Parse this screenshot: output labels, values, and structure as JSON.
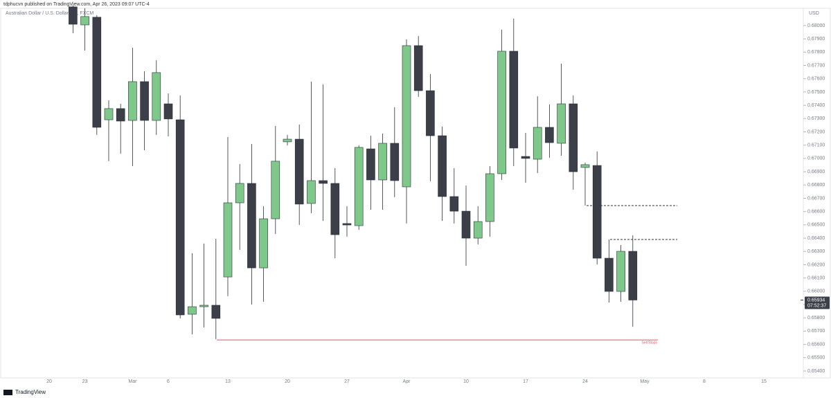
{
  "header": "tdphucvn published on TradingView.com, Apr 26, 2023 09:07 UTC-4",
  "footer": "TradingView",
  "chart_data": {
    "type": "candlestick",
    "title": "Australian Dollar / U.S. Dollar, 1D, FXCM",
    "y_axis_label": "USD",
    "up_color": "#7ec98a",
    "down_color": "#3c3f47",
    "categories": [
      "20",
      null,
      null,
      "23",
      null,
      null,
      null,
      "Mar",
      null,
      null,
      "6",
      null,
      null,
      null,
      null,
      "13",
      null,
      null,
      null,
      null,
      "20",
      null,
      null,
      null,
      null,
      "27",
      null,
      null,
      null,
      null,
      "Apr",
      null,
      null,
      null,
      null,
      "10",
      null,
      null,
      null,
      null,
      "17",
      null,
      null,
      null,
      null,
      "24",
      null,
      null,
      null,
      null,
      "May",
      null,
      null,
      null,
      null,
      "8",
      null,
      null,
      null,
      null,
      "15",
      null,
      null,
      null
    ],
    "open": [
      null,
      null,
      0.68141,
      0.68005,
      0.68063,
      0.67291,
      0.67375,
      0.67286,
      0.67578,
      0.67286,
      0.67411,
      0.67291,
      0.65827,
      0.65884,
      0.65895,
      0.66108,
      0.66666,
      0.66812,
      0.66176,
      0.66546,
      0.67125,
      0.67145,
      0.66661,
      0.66833,
      0.66812,
      0.6651,
      0.66494,
      0.67072,
      0.66838,
      0.67114,
      0.66786,
      0.67849,
      0.6751,
      0.67171,
      0.66713,
      0.66603,
      0.664,
      0.66525,
      0.66885,
      0.67807,
      0.67015,
      0.66994,
      0.67234,
      0.67114,
      0.67411,
      0.66932,
      0.66947,
      0.66249,
      0.65999,
      0.66301,
      null,
      null,
      null,
      null,
      null,
      null,
      null,
      null,
      null,
      null,
      null,
      null,
      null,
      null
    ],
    "high": [
      null,
      null,
      0.68151,
      0.6813,
      0.68078,
      0.67437,
      0.67411,
      0.67833,
      0.67656,
      0.67739,
      0.67489,
      0.67474,
      0.66286,
      0.66359,
      0.66395,
      0.67161,
      0.66958,
      0.67109,
      0.6664,
      0.67244,
      0.67177,
      0.67255,
      0.67578,
      0.67557,
      0.66927,
      0.6664,
      0.67098,
      0.67171,
      0.67187,
      0.67385,
      0.67896,
      0.67922,
      0.67635,
      0.67239,
      0.66927,
      0.66796,
      0.6664,
      0.66942,
      0.67969,
      0.68052,
      0.67192,
      0.67468,
      0.67406,
      0.67713,
      0.67474,
      0.66968,
      0.67052,
      0.6639,
      0.66348,
      0.66421,
      null,
      null,
      null,
      null,
      null,
      null,
      null,
      null,
      null,
      null,
      null,
      null,
      null,
      null
    ],
    "low": [
      null,
      null,
      0.67943,
      0.67812,
      0.67177,
      0.66979,
      0.67036,
      0.66942,
      0.67062,
      0.67177,
      0.67166,
      0.65796,
      0.65676,
      0.65728,
      0.65639,
      0.65963,
      0.66312,
      0.659,
      0.65921,
      0.66431,
      0.67098,
      0.66499,
      0.66588,
      0.6653,
      0.66249,
      0.66411,
      0.66463,
      0.66614,
      0.66614,
      0.66708,
      0.6651,
      0.67463,
      0.66828,
      0.6653,
      0.6651,
      0.66192,
      0.66353,
      0.66411,
      0.66838,
      0.66942,
      0.66817,
      0.6689,
      0.67005,
      0.6702,
      0.66765,
      0.66645,
      0.66202,
      0.65916,
      0.65921,
      0.65733,
      null,
      null,
      null,
      null,
      null,
      null,
      null,
      null,
      null,
      null,
      null,
      null,
      null,
      null
    ],
    "close": [
      null,
      null,
      0.6801,
      0.68068,
      0.67234,
      0.67375,
      0.67281,
      0.67578,
      0.67286,
      0.67646,
      0.67297,
      0.65822,
      0.65884,
      0.65895,
      0.65796,
      0.66666,
      0.66812,
      0.66176,
      0.66546,
      0.66979,
      0.67145,
      0.66656,
      0.66833,
      0.66812,
      0.66426,
      0.66499,
      0.67083,
      0.66838,
      0.67114,
      0.66833,
      0.67849,
      0.6751,
      0.67171,
      0.66713,
      0.66603,
      0.664,
      0.66525,
      0.66885,
      0.67807,
      0.67078,
      0.67,
      0.67234,
      0.67119,
      0.67411,
      0.669,
      0.66953,
      0.66249,
      0.65999,
      0.66301,
      0.65934,
      null,
      null,
      null,
      null,
      null,
      null,
      null,
      null,
      null,
      null,
      null,
      null,
      null,
      null
    ],
    "ylim": [
      0.65353,
      0.6813
    ],
    "yticks": [
      {
        "value": 0.68,
        "label": "0.68000"
      },
      {
        "value": 0.679,
        "label": "0.67900"
      },
      {
        "value": 0.678,
        "label": "0.67800"
      },
      {
        "value": 0.677,
        "label": "0.67700"
      },
      {
        "value": 0.676,
        "label": "0.67600"
      },
      {
        "value": 0.675,
        "label": "0.67500"
      },
      {
        "value": 0.674,
        "label": "0.67400"
      },
      {
        "value": 0.673,
        "label": "0.67300"
      },
      {
        "value": 0.672,
        "label": "0.67200"
      },
      {
        "value": 0.671,
        "label": "0.67100"
      },
      {
        "value": 0.67,
        "label": "0.67000"
      },
      {
        "value": 0.669,
        "label": "0.66900"
      },
      {
        "value": 0.668,
        "label": "0.66800"
      },
      {
        "value": 0.667,
        "label": "0.66700"
      },
      {
        "value": 0.666,
        "label": "0.66600"
      },
      {
        "value": 0.665,
        "label": "0.66500"
      },
      {
        "value": 0.664,
        "label": "0.66400"
      },
      {
        "value": 0.663,
        "label": "0.66300"
      },
      {
        "value": 0.662,
        "label": "0.66200"
      },
      {
        "value": 0.661,
        "label": "0.66100"
      },
      {
        "value": 0.66,
        "label": "0.66000"
      },
      {
        "value": 0.659,
        "label": "0.65900"
      },
      {
        "value": 0.658,
        "label": "0.65800"
      },
      {
        "value": 0.657,
        "label": "0.65700"
      },
      {
        "value": 0.656,
        "label": "0.65600"
      },
      {
        "value": 0.655,
        "label": "0.65500"
      },
      {
        "value": 0.654,
        "label": "0.65400"
      }
    ],
    "last_price": 0.65934,
    "countdown": "07:52:37",
    "levels": [
      {
        "value": 0.66645,
        "style": "dashed",
        "color": "#333333"
      },
      {
        "value": 0.6639,
        "style": "dashed",
        "color": "#333333"
      },
      {
        "value": 0.65634,
        "style": "solid",
        "color": "#e05565",
        "label": "Sell Stops"
      }
    ]
  }
}
